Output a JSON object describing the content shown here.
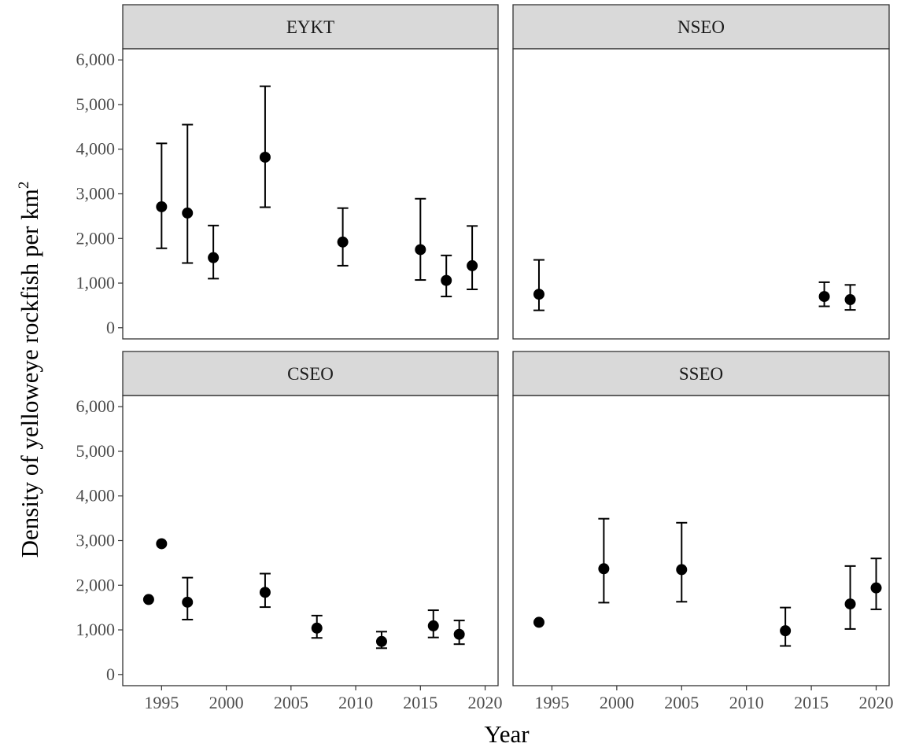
{
  "chart_data": {
    "type": "scatter",
    "layout": "facet-grid-2x2",
    "xlabel": "Year",
    "ylabel": "Density of yelloweye rockfish per km",
    "ylabel_superscript": "2",
    "xlim": [
      1992,
      2021
    ],
    "ylim": [
      -250,
      6250
    ],
    "x_ticks": [
      1995,
      2000,
      2005,
      2010,
      2015,
      2020
    ],
    "y_ticks": [
      0,
      1000,
      2000,
      3000,
      4000,
      5000,
      6000
    ],
    "y_tick_labels": [
      "0",
      "1,000",
      "2,000",
      "3,000",
      "4,000",
      "5,000",
      "6,000"
    ],
    "grid": false,
    "colors": {
      "point": "#000000",
      "strip_fill": "#d9d9d9",
      "panel_border": "#333333",
      "axis_text": "#4d4d4d"
    },
    "panels": [
      {
        "title": "EYKT",
        "points": [
          {
            "x": 1995,
            "y": 2710,
            "lo": 1780,
            "hi": 4130
          },
          {
            "x": 1997,
            "y": 2570,
            "lo": 1450,
            "hi": 4550
          },
          {
            "x": 1999,
            "y": 1570,
            "lo": 1100,
            "hi": 2290
          },
          {
            "x": 2003,
            "y": 3820,
            "lo": 2700,
            "hi": 5410
          },
          {
            "x": 2009,
            "y": 1920,
            "lo": 1390,
            "hi": 2680
          },
          {
            "x": 2015,
            "y": 1750,
            "lo": 1070,
            "hi": 2890
          },
          {
            "x": 2017,
            "y": 1060,
            "lo": 700,
            "hi": 1620
          },
          {
            "x": 2019,
            "y": 1390,
            "lo": 860,
            "hi": 2280
          }
        ]
      },
      {
        "title": "NSEO",
        "points": [
          {
            "x": 1994,
            "y": 750,
            "lo": 390,
            "hi": 1520
          },
          {
            "x": 2016,
            "y": 700,
            "lo": 480,
            "hi": 1020
          },
          {
            "x": 2018,
            "y": 630,
            "lo": 400,
            "hi": 960
          }
        ]
      },
      {
        "title": "CSEO",
        "points": [
          {
            "x": 1994,
            "y": 1680
          },
          {
            "x": 1995,
            "y": 2930
          },
          {
            "x": 1997,
            "y": 1620,
            "lo": 1230,
            "hi": 2170
          },
          {
            "x": 2003,
            "y": 1840,
            "lo": 1510,
            "hi": 2260
          },
          {
            "x": 2007,
            "y": 1040,
            "lo": 820,
            "hi": 1320
          },
          {
            "x": 2012,
            "y": 740,
            "lo": 590,
            "hi": 960
          },
          {
            "x": 2016,
            "y": 1090,
            "lo": 830,
            "hi": 1440
          },
          {
            "x": 2018,
            "y": 900,
            "lo": 680,
            "hi": 1210
          }
        ]
      },
      {
        "title": "SSEO",
        "points": [
          {
            "x": 1994,
            "y": 1170
          },
          {
            "x": 1999,
            "y": 2370,
            "lo": 1610,
            "hi": 3490
          },
          {
            "x": 2005,
            "y": 2350,
            "lo": 1630,
            "hi": 3400
          },
          {
            "x": 2013,
            "y": 980,
            "lo": 640,
            "hi": 1500
          },
          {
            "x": 2018,
            "y": 1580,
            "lo": 1020,
            "hi": 2430
          },
          {
            "x": 2020,
            "y": 1940,
            "lo": 1460,
            "hi": 2600
          }
        ]
      }
    ]
  }
}
